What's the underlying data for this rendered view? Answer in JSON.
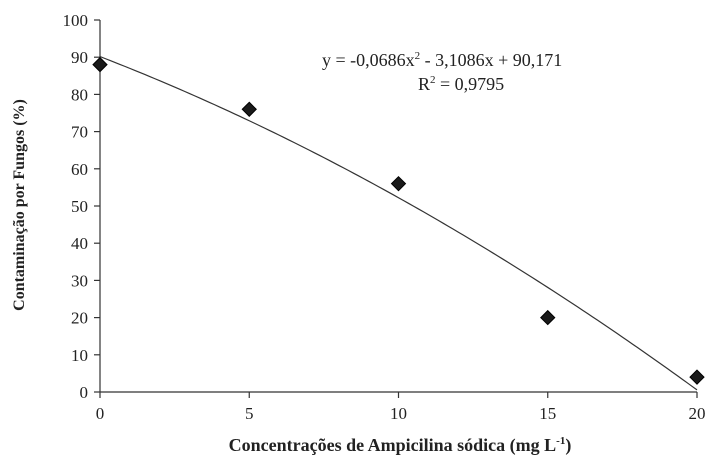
{
  "chart_data": {
    "type": "scatter",
    "xlabel_main": "Concentrações de Ampicilina  sódica (mg L",
    "xlabel_sup": "-1",
    "xlabel_close": ")",
    "ylabel": "Contaminação por Fungos (%)",
    "xlim": [
      0,
      20
    ],
    "ylim": [
      0,
      100
    ],
    "xticks": [
      "0",
      "5",
      "10",
      "15",
      "20"
    ],
    "xtick_values": [
      0,
      5,
      10,
      15,
      20
    ],
    "yticks": [
      "0",
      "10",
      "20",
      "30",
      "40",
      "50",
      "60",
      "70",
      "80",
      "90",
      "100"
    ],
    "ytick_values": [
      0,
      10,
      20,
      30,
      40,
      50,
      60,
      70,
      80,
      90,
      100
    ],
    "grid": false,
    "series": [
      {
        "x": [
          0,
          5,
          10,
          15,
          20
        ],
        "y": [
          88,
          76,
          56,
          20,
          4
        ],
        "marker": "diamond",
        "color": "#1a1a1a"
      }
    ],
    "trendline": {
      "type": "polynomial-2",
      "coefficients": {
        "a": -0.0686,
        "b": -3.1086,
        "c": 90.171
      },
      "color": "#333333"
    },
    "annotations": {
      "equation_main": "y = -0,0686x",
      "equation_sup": "2",
      "equation_rest": " - 3,1086x + 90,171",
      "r2_label": "R",
      "r2_sup": "2",
      "r2_value": " = 0,9795"
    }
  }
}
